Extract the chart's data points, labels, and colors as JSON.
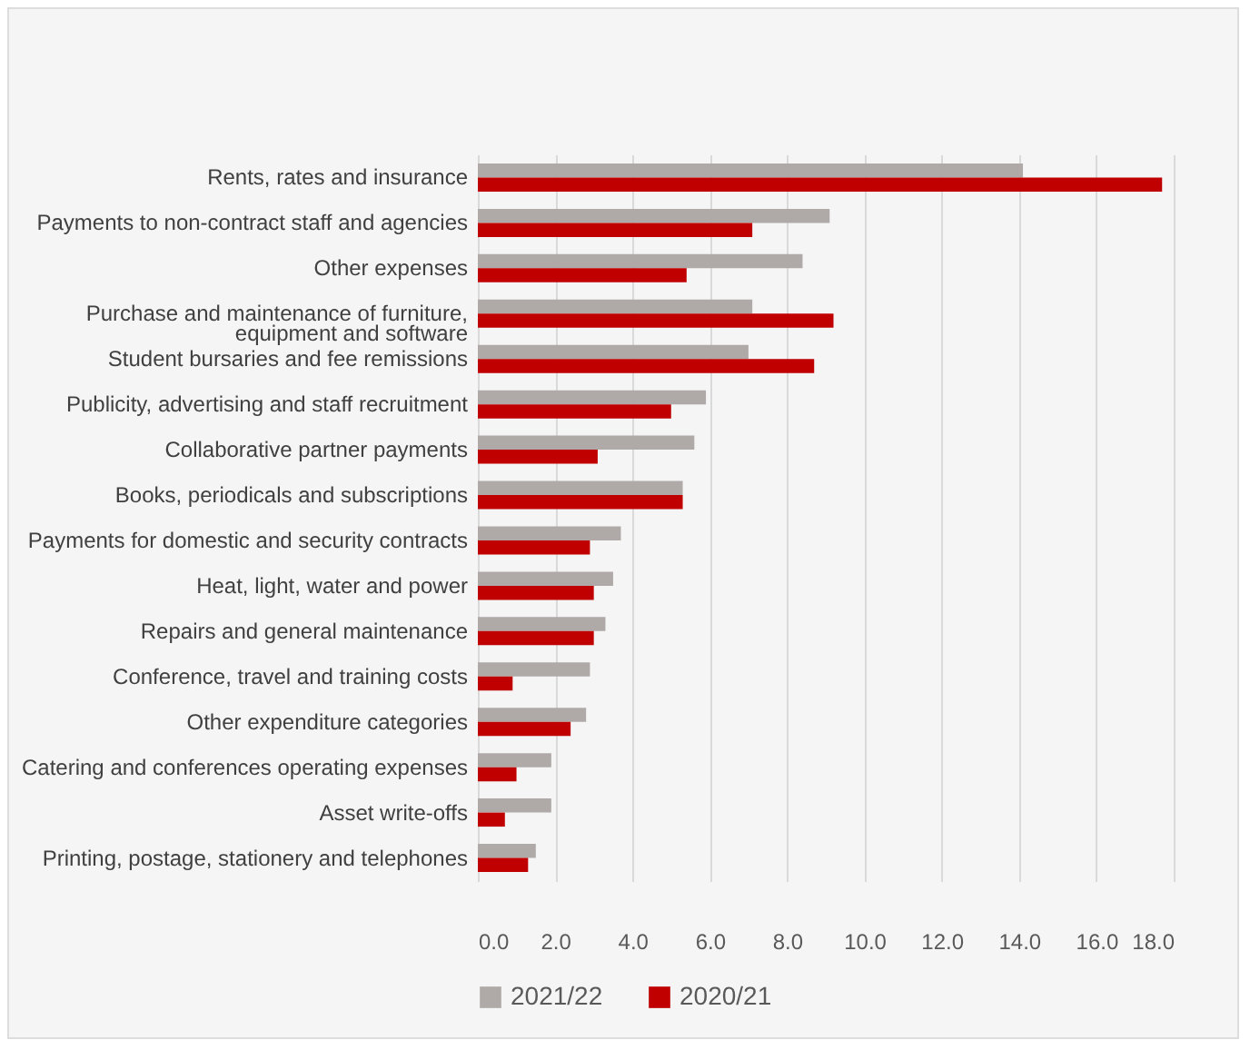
{
  "chart_data": {
    "type": "bar",
    "orientation": "horizontal",
    "categories": [
      "Rents, rates and insurance",
      "Payments to non-contract staff and agencies",
      "Other expenses",
      "Purchase and maintenance of furniture, equipment and software",
      "Student bursaries and fee remissions",
      "Publicity, advertising and staff recruitment",
      "Collaborative partner payments",
      "Books, periodicals and subscriptions",
      "Payments for domestic and security contracts",
      "Heat, light, water and power",
      "Repairs and general maintenance",
      "Conference, travel and training costs",
      "Other expenditure categories",
      "Catering and conferences operating expenses",
      "Asset write-offs",
      "Printing, postage, stationery and telephones"
    ],
    "series": [
      {
        "name": "2021/22",
        "color": "#afaaa8",
        "values": [
          14.1,
          9.1,
          8.4,
          7.1,
          7.0,
          5.9,
          5.6,
          5.3,
          3.7,
          3.5,
          3.3,
          2.9,
          2.8,
          1.9,
          1.9,
          1.5
        ]
      },
      {
        "name": "2020/21",
        "color": "#c00000",
        "values": [
          17.7,
          7.1,
          5.4,
          9.2,
          8.7,
          5.0,
          3.1,
          5.3,
          2.9,
          3.0,
          3.0,
          0.9,
          2.4,
          1.0,
          0.7,
          1.3
        ]
      }
    ],
    "xlim": [
      0,
      18
    ],
    "xticks": [
      {
        "value": 0,
        "label": "0.0"
      },
      {
        "value": 2,
        "label": "2.0"
      },
      {
        "value": 4,
        "label": "4.0"
      },
      {
        "value": 6,
        "label": "6.0"
      },
      {
        "value": 8,
        "label": "8.0"
      },
      {
        "value": 10,
        "label": "10.0"
      },
      {
        "value": 12,
        "label": "12.0"
      },
      {
        "value": 14,
        "label": "14.0"
      },
      {
        "value": 16,
        "label": "16.0"
      },
      {
        "value": 18,
        "label": "18.0"
      }
    ],
    "grid": "x",
    "legend": "bottom"
  }
}
